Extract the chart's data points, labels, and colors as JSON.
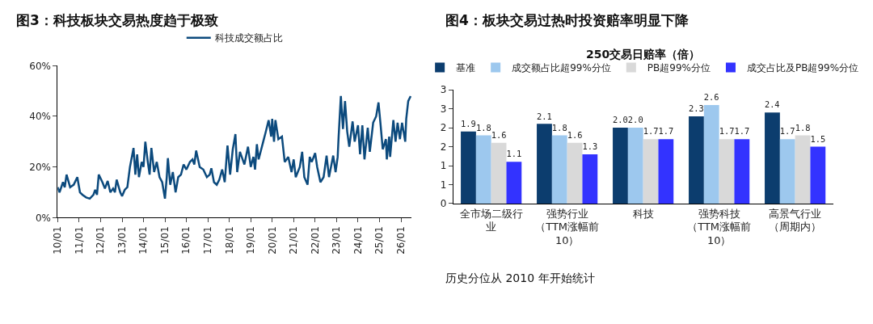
{
  "chart_data": [
    {
      "type": "line",
      "title": "图3：科技板块交易热度趋于极致",
      "legend": "top",
      "xlim": [
        "2010-01-01",
        "2026-07-01"
      ],
      "xticks": [
        {
          "value": "2010-01-01",
          "label": "10/01"
        },
        {
          "value": "2011-01-01",
          "label": "11/01"
        },
        {
          "value": "2012-01-01",
          "label": "12/01"
        },
        {
          "value": "2013-01-01",
          "label": "13/01"
        },
        {
          "value": "2014-01-01",
          "label": "14/01"
        },
        {
          "value": "2015-01-01",
          "label": "15/01"
        },
        {
          "value": "2016-01-01",
          "label": "16/01"
        },
        {
          "value": "2017-01-01",
          "label": "17/01"
        },
        {
          "value": "2018-01-01",
          "label": "18/01"
        },
        {
          "value": "2019-01-01",
          "label": "19/01"
        },
        {
          "value": "2020-01-01",
          "label": "20/01"
        },
        {
          "value": "2021-01-01",
          "label": "21/01"
        },
        {
          "value": "2022-01-01",
          "label": "22/01"
        },
        {
          "value": "2023-01-01",
          "label": "23/01"
        },
        {
          "value": "2024-01-01",
          "label": "24/01"
        },
        {
          "value": "2025-01-01",
          "label": "25/01"
        },
        {
          "value": "2026-01-01",
          "label": "26/01"
        }
      ],
      "ylim": [
        0,
        60
      ],
      "yticks": [
        {
          "value": 0,
          "label": "0%"
        },
        {
          "value": 20,
          "label": "20%"
        },
        {
          "value": 40,
          "label": "40%"
        },
        {
          "value": 60,
          "label": "60%"
        }
      ],
      "x": [
        "2010-01-01",
        "2010-02-01",
        "2010-04-01",
        "2010-05-01",
        "2010-06-01",
        "2010-08-01",
        "2010-10-01",
        "2010-12-01",
        "2011-01-15",
        "2011-03-01",
        "2011-05-01",
        "2011-07-01",
        "2011-09-01",
        "2011-10-01",
        "2011-11-01",
        "2011-12-01",
        "2012-02-01",
        "2012-03-15",
        "2012-05-01",
        "2012-06-15",
        "2012-08-01",
        "2012-09-01",
        "2012-10-01",
        "2012-12-01",
        "2013-01-01",
        "2013-02-15",
        "2013-04-01",
        "2013-05-15",
        "2013-07-15",
        "2013-08-15",
        "2013-09-15",
        "2013-10-15",
        "2013-12-01",
        "2014-01-01",
        "2014-02-01",
        "2014-03-15",
        "2014-04-15",
        "2014-05-15",
        "2014-07-01",
        "2014-08-15",
        "2014-10-01",
        "2014-11-15",
        "2015-01-01",
        "2015-02-01",
        "2015-02-20",
        "2015-04-01",
        "2015-05-15",
        "2015-07-01",
        "2015-08-15",
        "2015-10-01",
        "2015-11-15",
        "2016-01-01",
        "2016-03-01",
        "2016-04-15",
        "2016-05-15",
        "2016-06-15",
        "2016-08-15",
        "2016-10-15",
        "2016-12-15",
        "2017-02-01",
        "2017-03-01",
        "2017-04-15",
        "2017-06-01",
        "2017-07-15",
        "2017-09-01",
        "2017-10-15",
        "2017-12-01",
        "2018-01-15",
        "2018-03-01",
        "2018-04-15",
        "2018-05-15",
        "2018-07-01",
        "2018-09-15",
        "2018-11-15",
        "2019-01-01",
        "2019-02-15",
        "2019-03-15",
        "2019-04-15",
        "2019-05-15",
        "2019-08-01",
        "2019-09-15",
        "2019-11-01",
        "2019-12-15",
        "2020-01-01",
        "2020-02-01",
        "2020-02-25",
        "2020-04-15",
        "2020-06-15",
        "2020-08-01",
        "2020-10-01",
        "2020-11-25",
        "2021-01-01",
        "2021-02-05",
        "2021-04-15",
        "2021-05-25",
        "2021-07-01",
        "2021-08-25",
        "2021-10-01",
        "2021-11-05",
        "2022-01-01",
        "2022-02-05",
        "2022-04-01",
        "2022-05-25",
        "2022-07-15",
        "2022-08-25",
        "2022-11-05",
        "2022-12-15",
        "2023-01-20",
        "2023-02-05",
        "2023-03-15",
        "2023-04-20",
        "2023-05-25",
        "2023-07-01",
        "2023-08-05",
        "2023-10-01",
        "2023-11-05",
        "2024-01-01",
        "2024-02-05",
        "2024-03-15",
        "2024-04-20",
        "2024-06-15",
        "2024-07-20",
        "2024-09-15",
        "2024-11-05",
        "2024-12-15",
        "2025-01-20",
        "2025-02-25",
        "2025-04-20",
        "2025-05-05",
        "2025-06-15",
        "2025-07-01",
        "2025-08-25",
        "2025-10-01",
        "2025-11-05",
        "2025-12-15",
        "2026-01-20",
        "2026-03-15",
        "2026-04-01",
        "2026-05-05",
        "2026-06-15"
      ],
      "series": [
        {
          "name": "科技成交额占比",
          "color": "#0c4a7d",
          "values": [
            12,
            10,
            14,
            12,
            17,
            12,
            13,
            16,
            10,
            9,
            8,
            7.5,
            9,
            11,
            9,
            17,
            14,
            11.5,
            14.5,
            10,
            11.5,
            10,
            15,
            10,
            8.5,
            11,
            12,
            20,
            27.5,
            17,
            25,
            16,
            22,
            20,
            30,
            22,
            17,
            27.5,
            18,
            22,
            16,
            14,
            7.5,
            16,
            23.5,
            13,
            18,
            10,
            16,
            17,
            21,
            19,
            22,
            23,
            21,
            26.5,
            20,
            19,
            16,
            17,
            19.5,
            14,
            13,
            15,
            19,
            14,
            28.5,
            17,
            27,
            33,
            18,
            26,
            21,
            28,
            20,
            24,
            19,
            29,
            23,
            30,
            34,
            38.5,
            32,
            39,
            30,
            38.5,
            31,
            32,
            22,
            24,
            18,
            23,
            16,
            20,
            26,
            16,
            13,
            24,
            22,
            25.5,
            20,
            14,
            16,
            24.5,
            16,
            24.5,
            18,
            24,
            32,
            48,
            35,
            46,
            34,
            28,
            38,
            30,
            36.5,
            25,
            36.5,
            23,
            35.5,
            26,
            37.5,
            40,
            45.5,
            36.5,
            27,
            31,
            23,
            32,
            24,
            38.5,
            30,
            37.5,
            31,
            37.5,
            30,
            39,
            46,
            48
          ]
        }
      ]
    },
    {
      "type": "bar",
      "title": "图4：板块交易过热时投资赔率明显下降",
      "subtitle": "250交易日赔率（倍）",
      "legend": "top",
      "categories": [
        "全市场二级行业",
        "强势行业（TTM涨幅前10）",
        "科技",
        "强势科技（TTM涨幅前10）",
        "高景气行业（周期内）"
      ],
      "ylim": [
        0,
        3
      ],
      "yticks": [
        0,
        {
          "value": 0.5,
          "label": "1"
        },
        1,
        {
          "value": 1.5,
          "label": "2"
        },
        2,
        {
          "value": 2.5,
          "label": "3"
        },
        3
      ],
      "annotations": [
        "历史分位从 2010 年开始统计"
      ],
      "series": [
        {
          "name": "基准",
          "color": "#0c3d6e",
          "values": [
            1.9,
            2.1,
            2.0,
            2.3,
            2.4
          ],
          "value_labels": [
            "1.9",
            "2.1",
            "2.0",
            "2.3",
            "2.4"
          ]
        },
        {
          "name": "成交额占比超99%分位",
          "color": "#9dc8ee",
          "values": [
            1.8,
            1.8,
            2.0,
            2.6,
            1.7
          ],
          "value_labels": [
            "1.8",
            "1.8",
            "2.0",
            "2.6",
            "1.7"
          ]
        },
        {
          "name": "PB超99%分位",
          "color": "#d9d9d9",
          "values": [
            1.6,
            1.6,
            1.7,
            1.7,
            1.8
          ],
          "value_labels": [
            "1.6",
            "1.6",
            "1.7",
            "1.7",
            "1.8"
          ]
        },
        {
          "name": "成交占比及PB超99%分位",
          "color": "#3333ff",
          "values": [
            1.1,
            1.3,
            1.7,
            1.7,
            1.5
          ],
          "value_labels": [
            "1.1",
            "1.3",
            "1.7",
            "1.7",
            "1.5"
          ]
        }
      ]
    }
  ]
}
